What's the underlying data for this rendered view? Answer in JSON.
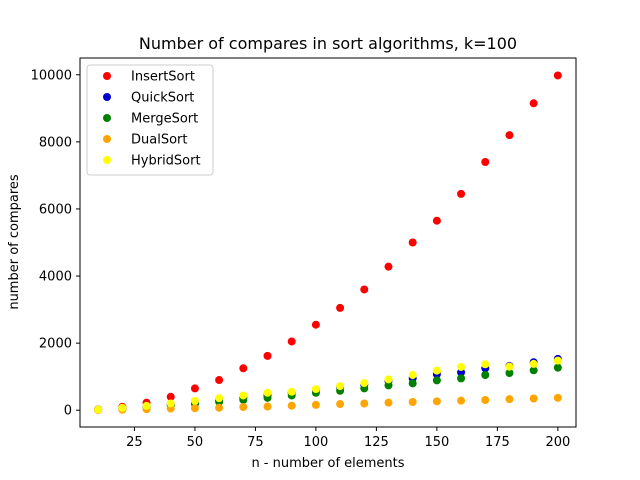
{
  "chart_data": {
    "type": "scatter",
    "title": "Number of compares in sort algorithms, k=100",
    "xlabel": "n - number of elements",
    "ylabel": "number of compares",
    "xlim": [
      2.5,
      207.5
    ],
    "ylim": [
      -500,
      10500
    ],
    "x_ticks": [
      25,
      50,
      75,
      100,
      125,
      150,
      175,
      200
    ],
    "y_ticks": [
      0,
      2000,
      4000,
      6000,
      8000,
      10000
    ],
    "grid": false,
    "legend_position": "top-left",
    "x": [
      10,
      20,
      30,
      40,
      50,
      60,
      70,
      80,
      90,
      100,
      110,
      120,
      130,
      140,
      150,
      160,
      170,
      180,
      190,
      200
    ],
    "series": [
      {
        "name": "InsertSort",
        "color": "#ff0000",
        "values": [
          25,
          100,
          225,
          400,
          650,
          900,
          1250,
          1620,
          2050,
          2550,
          3050,
          3600,
          4280,
          5000,
          5650,
          6450,
          7400,
          8200,
          9150,
          9980
        ]
      },
      {
        "name": "QuickSort",
        "color": "#0000cc",
        "values": [
          20,
          60,
          120,
          180,
          230,
          300,
          380,
          450,
          520,
          610,
          690,
          760,
          870,
          950,
          1070,
          1130,
          1250,
          1320,
          1430,
          1530
        ]
      },
      {
        "name": "MergeSort",
        "color": "#008000",
        "values": [
          15,
          50,
          95,
          145,
          190,
          250,
          310,
          370,
          440,
          520,
          580,
          650,
          740,
          800,
          890,
          950,
          1050,
          1110,
          1190,
          1270
        ]
      },
      {
        "name": "DualSort",
        "color": "#ffa500",
        "values": [
          5,
          15,
          30,
          50,
          60,
          75,
          95,
          110,
          135,
          160,
          185,
          200,
          225,
          245,
          265,
          285,
          305,
          330,
          350,
          370
        ]
      },
      {
        "name": "HybridSort",
        "color": "#ffff00",
        "values": [
          20,
          70,
          130,
          200,
          280,
          360,
          440,
          520,
          550,
          630,
          720,
          810,
          920,
          1050,
          1180,
          1290,
          1370,
          1300,
          1380,
          1480
        ]
      }
    ]
  }
}
